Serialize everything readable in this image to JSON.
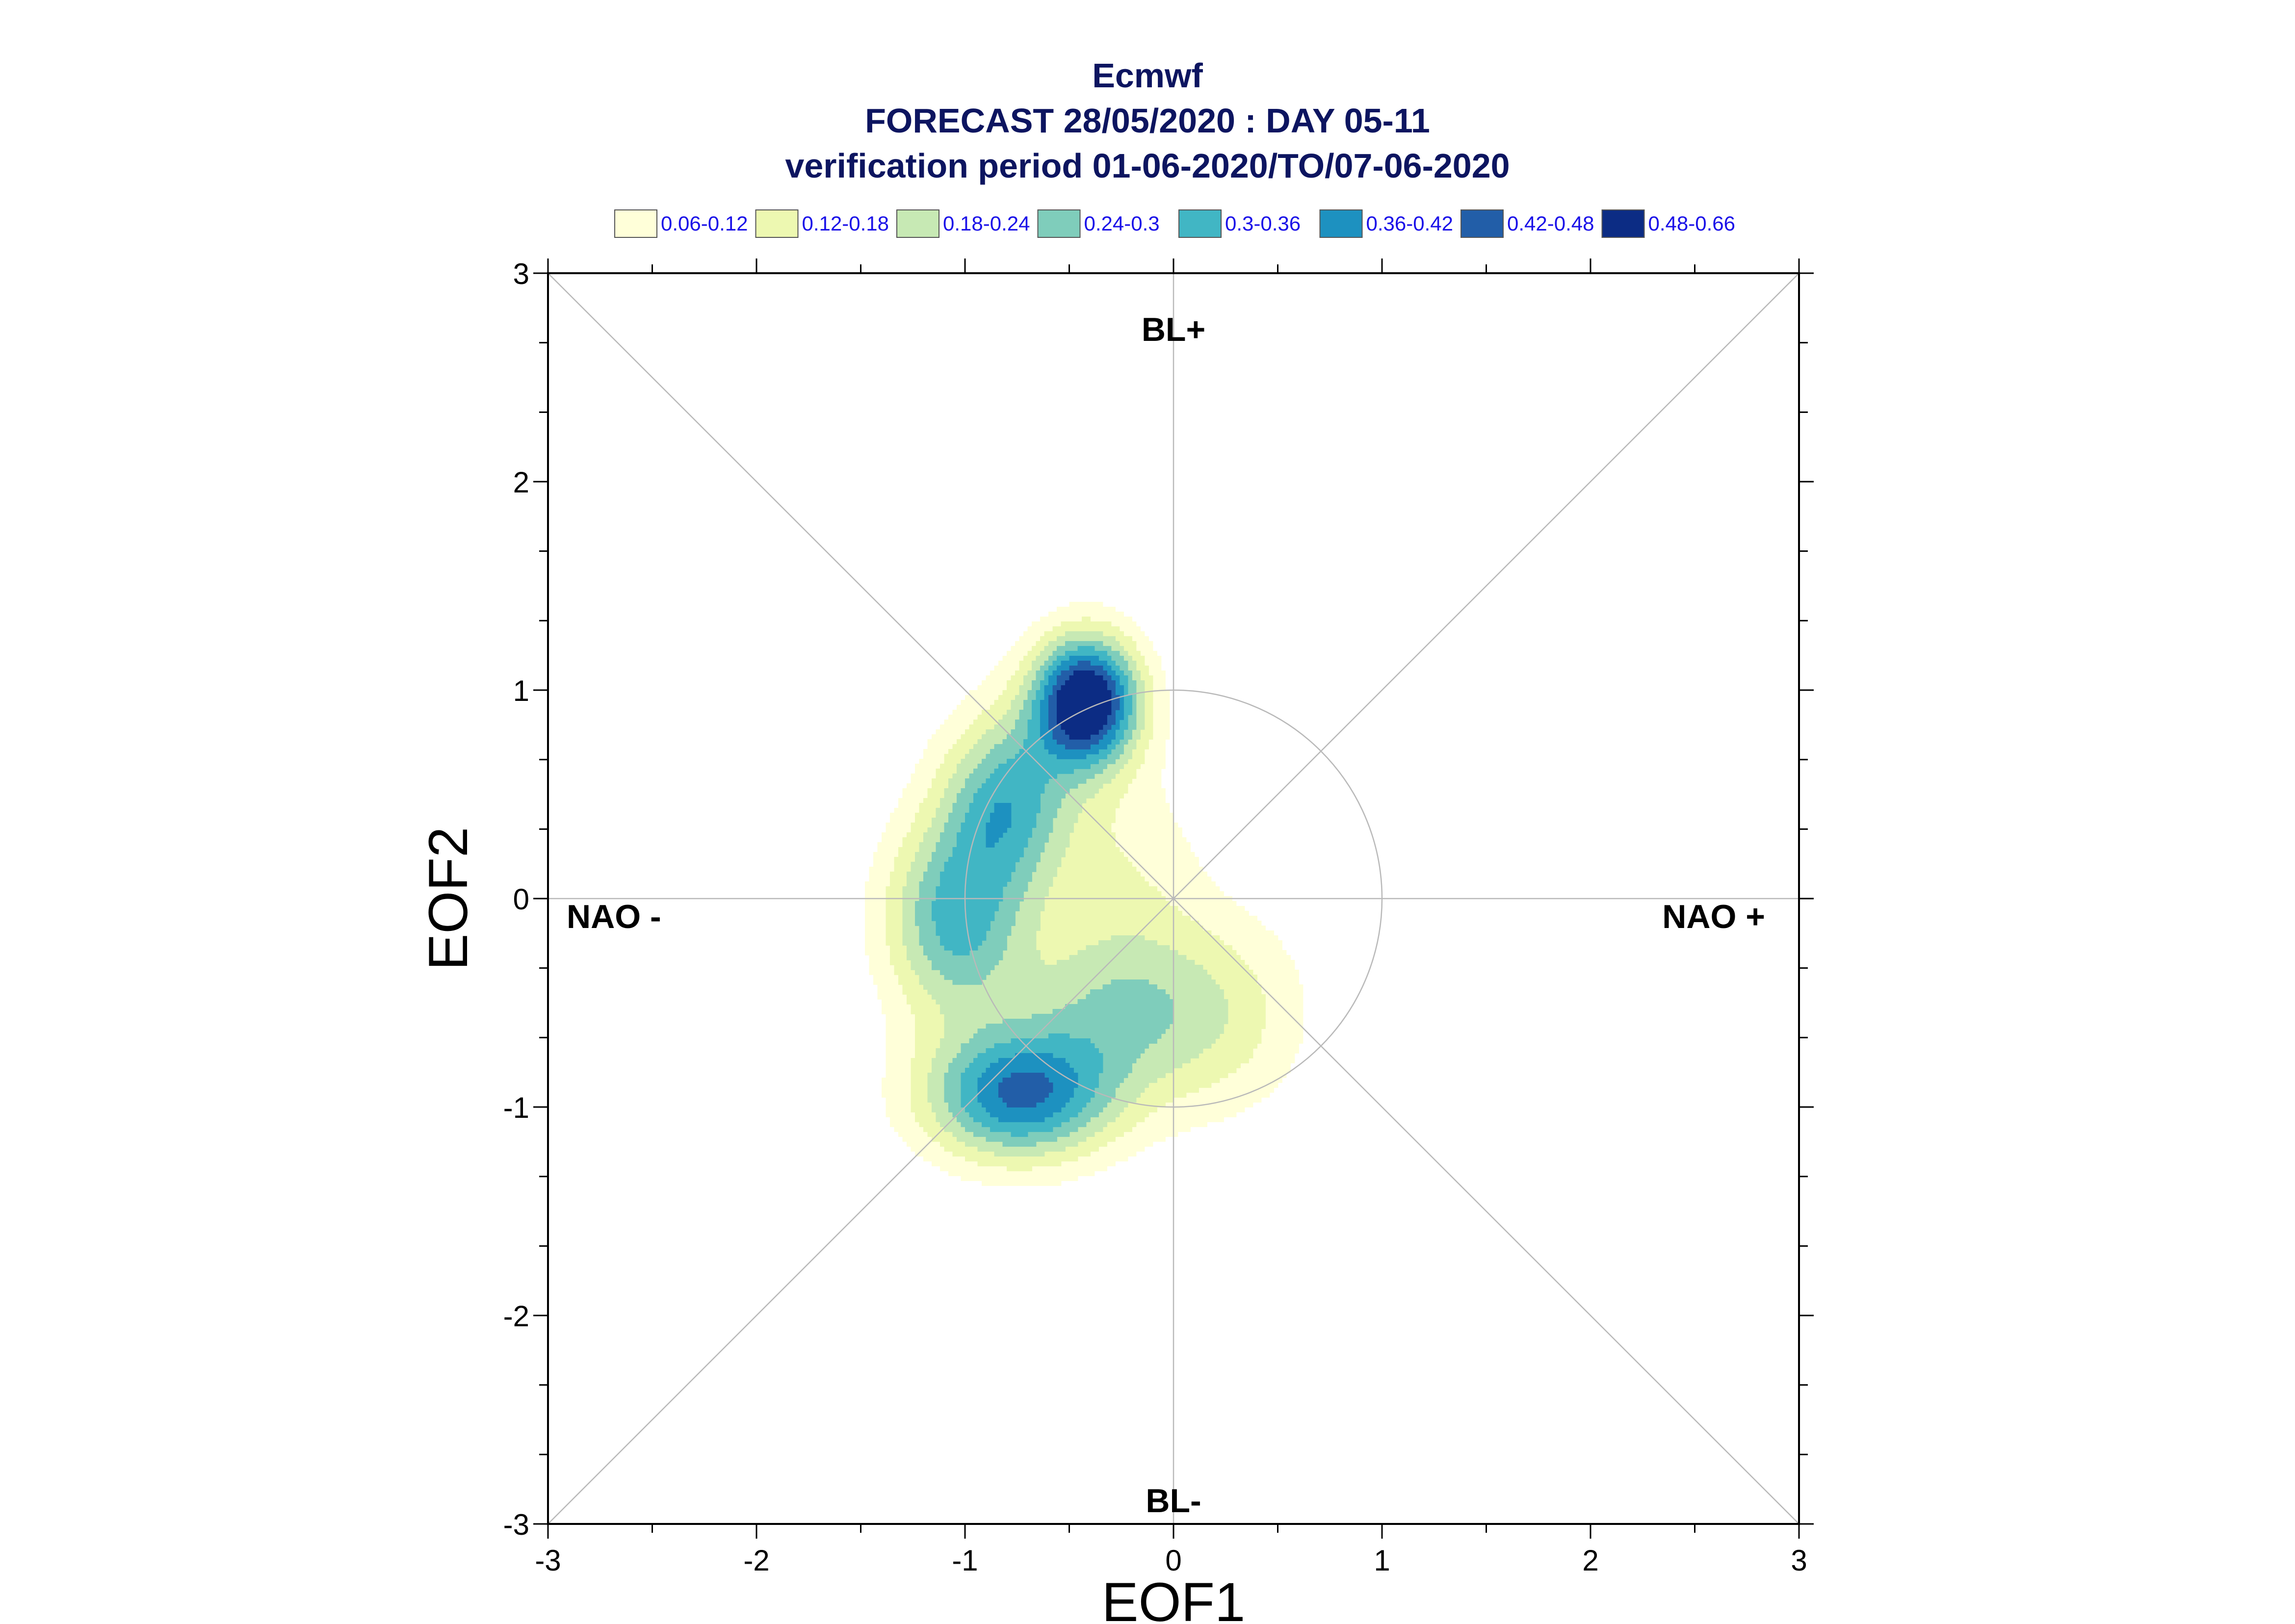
{
  "chart_data": {
    "type": "contour",
    "title": "Ecmwf",
    "subtitle": "FORECAST 28/05/2020 : DAY 05-11",
    "subtitle2": "verification period 01-06-2020/TO/07-06-2020",
    "xlabel": "EOF1",
    "ylabel": "EOF2",
    "xlim": [
      -3,
      3
    ],
    "ylim": [
      -3,
      3
    ],
    "xticks": [
      "-3",
      "-2",
      "-1",
      "0",
      "1",
      "2",
      "3"
    ],
    "yticks": [
      "-3",
      "-2",
      "-1",
      "0",
      "1",
      "2",
      "3"
    ],
    "regime_labels": {
      "top": "BL+",
      "bottom": "BL-",
      "left": "NAO -",
      "right": "NAO +"
    },
    "legend": [
      {
        "label": "0.06-0.12",
        "color": "#ffffd9"
      },
      {
        "label": "0.12-0.18",
        "color": "#edf8b1"
      },
      {
        "label": "0.18-0.24",
        "color": "#c7e9b4"
      },
      {
        "label": "0.24-0.3",
        "color": "#7fcdbb"
      },
      {
        "label": "0.3-0.36",
        "color": "#41b6c4"
      },
      {
        "label": "0.36-0.42",
        "color": "#1d91c0"
      },
      {
        "label": "0.42-0.48",
        "color": "#225ea8"
      },
      {
        "label": "0.48-0.66",
        "color": "#0c2c84"
      }
    ],
    "reference_circle_radius": 1,
    "density_components": [
      {
        "center": [
          -0.42,
          0.95
        ],
        "sigma": [
          0.18,
          0.22
        ],
        "weight": 0.58
      },
      {
        "center": [
          -0.8,
          0.48
        ],
        "sigma": [
          0.22,
          0.3
        ],
        "weight": 0.3
      },
      {
        "center": [
          -1.05,
          -0.1
        ],
        "sigma": [
          0.24,
          0.34
        ],
        "weight": 0.31
      },
      {
        "center": [
          -0.75,
          -0.95
        ],
        "sigma": [
          0.32,
          0.22
        ],
        "weight": 0.4
      },
      {
        "center": [
          -0.3,
          -0.55
        ],
        "sigma": [
          0.35,
          0.3
        ],
        "weight": 0.2
      },
      {
        "center": [
          0.25,
          -0.55
        ],
        "sigma": [
          0.3,
          0.35
        ],
        "weight": 0.12
      },
      {
        "center": [
          -0.25,
          0.15
        ],
        "sigma": [
          0.28,
          0.38
        ],
        "weight": 0.1
      }
    ]
  }
}
